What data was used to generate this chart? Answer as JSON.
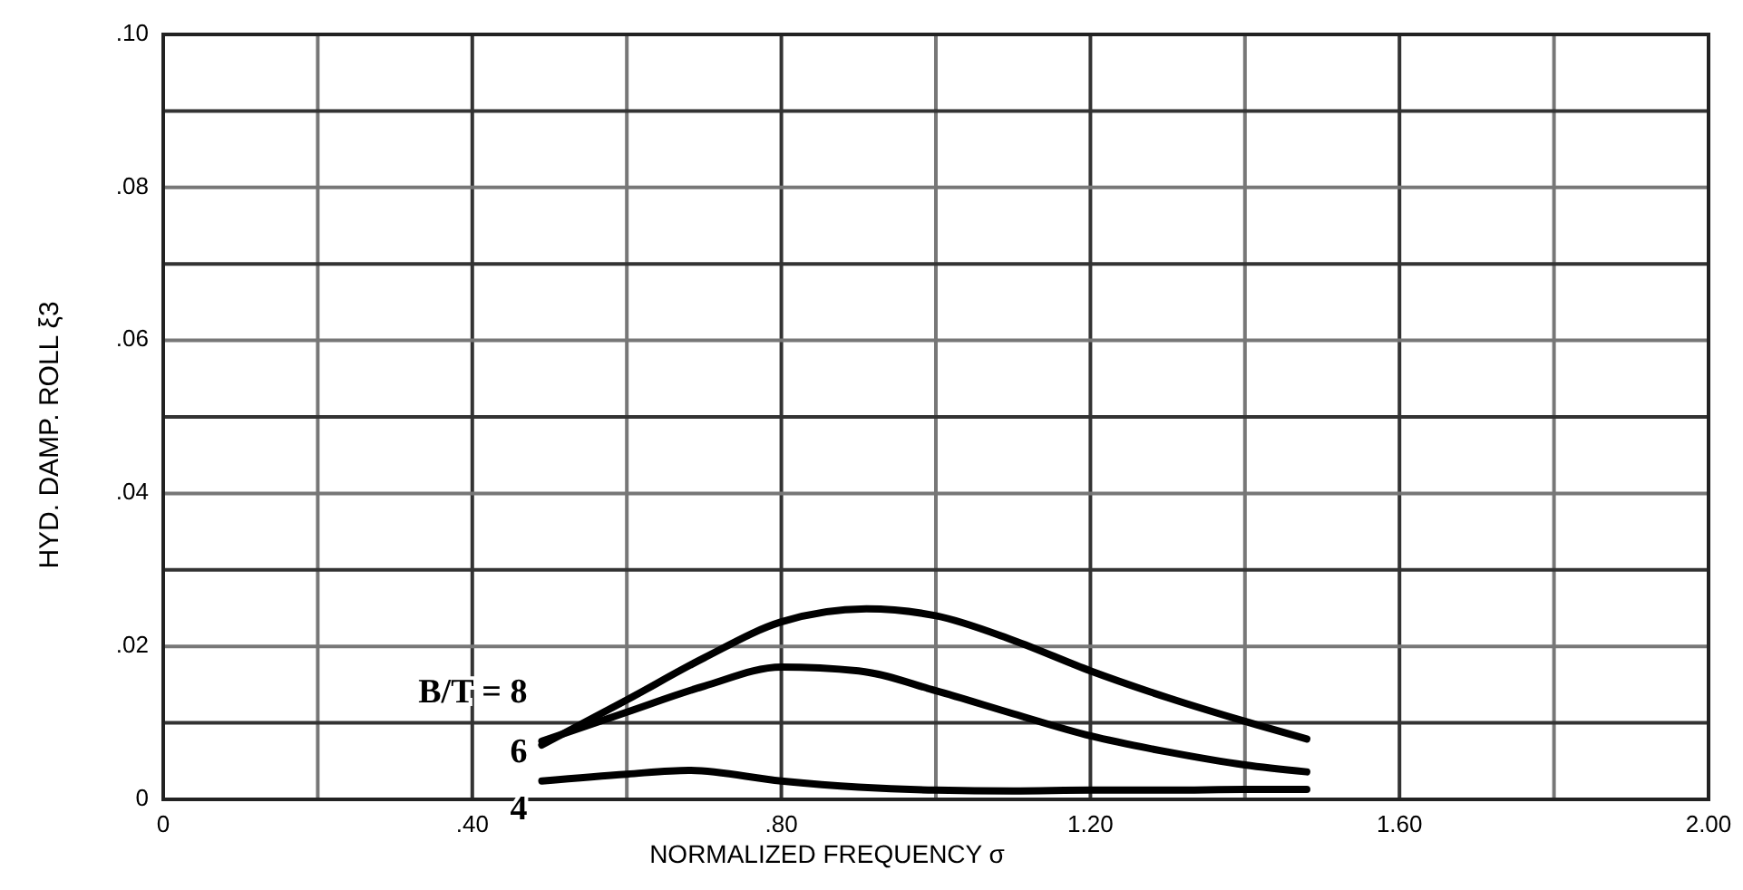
{
  "chart_data": {
    "type": "line",
    "xlabel": "NORMALIZED FREQUENCY σ",
    "ylabel": "HYD. DAMP. ROLL ξ3",
    "xlim": [
      0,
      2
    ],
    "ylim": [
      0,
      0.1
    ],
    "xticks": [
      {
        "value": 0,
        "label": "0"
      },
      {
        "value": 0.2,
        "label": null
      },
      {
        "value": 0.4,
        "label": ".40"
      },
      {
        "value": 0.6,
        "label": null
      },
      {
        "value": 0.8,
        "label": ".80"
      },
      {
        "value": 1.0,
        "label": null
      },
      {
        "value": 1.2,
        "label": "1.20"
      },
      {
        "value": 1.4,
        "label": null
      },
      {
        "value": 1.6,
        "label": "1.60"
      },
      {
        "value": 1.8,
        "label": null
      },
      {
        "value": 2.0,
        "label": "2.00"
      }
    ],
    "yticks": [
      {
        "value": 0,
        "label": "0"
      },
      {
        "value": 0.01,
        "label": null
      },
      {
        "value": 0.02,
        "label": ".02"
      },
      {
        "value": 0.03,
        "label": null
      },
      {
        "value": 0.04,
        "label": ".04"
      },
      {
        "value": 0.05,
        "label": null
      },
      {
        "value": 0.06,
        "label": ".06"
      },
      {
        "value": 0.07,
        "label": null
      },
      {
        "value": 0.08,
        "label": ".08"
      },
      {
        "value": 0.09,
        "label": null
      },
      {
        "value": 0.1,
        "label": ".10"
      }
    ],
    "grid": true,
    "line_style": "solid",
    "series": [
      {
        "name": "B/T = 8",
        "color": "#000000",
        "x": [
          0.49,
          0.6,
          0.7,
          0.8,
          0.91,
          1.0,
          1.1,
          1.2,
          1.3,
          1.4,
          1.48
        ],
        "values": [
          0.0071,
          0.013,
          0.0185,
          0.0232,
          0.0249,
          0.024,
          0.0208,
          0.0168,
          0.0133,
          0.0102,
          0.0079
        ]
      },
      {
        "name": "6",
        "color": "#000000",
        "x": [
          0.49,
          0.6,
          0.7,
          0.8,
          0.9,
          1.0,
          1.1,
          1.2,
          1.3,
          1.4,
          1.48
        ],
        "values": [
          0.0076,
          0.0114,
          0.0148,
          0.0173,
          0.0168,
          0.0142,
          0.0112,
          0.0083,
          0.0062,
          0.0045,
          0.0036
        ]
      },
      {
        "name": "4",
        "color": "#000000",
        "x": [
          0.49,
          0.6,
          0.68,
          0.8,
          0.9,
          1.0,
          1.1,
          1.2,
          1.3,
          1.4,
          1.48
        ],
        "values": [
          0.0024,
          0.0033,
          0.0038,
          0.0024,
          0.0016,
          0.0012,
          0.0011,
          0.0012,
          0.0012,
          0.0013,
          0.0013
        ]
      }
    ]
  }
}
